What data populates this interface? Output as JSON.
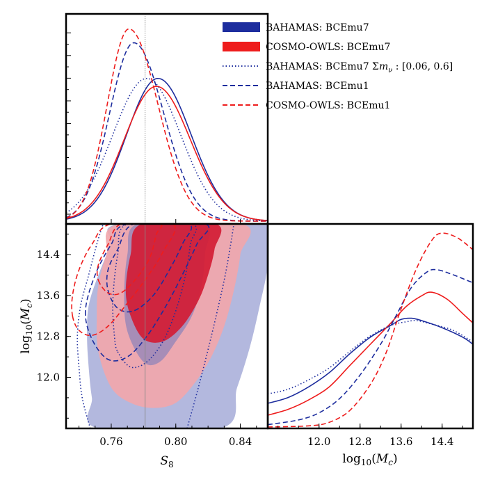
{
  "chart_data": {
    "type": "corner-plot",
    "colors": {
      "bahamas": "#1d2d9e",
      "cosmo_owls": "#ee1c1c",
      "bahamas_fill_outer": "#a6acd8",
      "bahamas_fill_inner": "#6f77bd",
      "cosmo_fill_outer": "#f2a6ab",
      "cosmo_fill_inner": "#d31c34"
    },
    "legend": [
      {
        "label": "BAHAMAS: BCEmu7",
        "color": "#1d2d9e",
        "style": "patch"
      },
      {
        "label": "COSMO-OWLS: BCEmu7",
        "color": "#ee1c1c",
        "style": "patch"
      },
      {
        "label": "BAHAMAS: BCEmu7 Σm_ν : [0.06, 0.6]",
        "color": "#1d2d9e",
        "style": "dotted"
      },
      {
        "label": "BAHAMAS: BCEmu1",
        "color": "#1d2d9e",
        "style": "dashed"
      },
      {
        "label": "COSMO-OWLS: BCEmu1",
        "color": "#ee1c1c",
        "style": "dashed"
      }
    ],
    "axes": {
      "s8": {
        "label": "S_8",
        "range": [
          0.732,
          0.857
        ],
        "ticks": [
          "0.76",
          "0.80",
          "0.84"
        ],
        "tick_values": [
          0.76,
          0.8,
          0.84
        ]
      },
      "logmc": {
        "label": "log10(M_c)",
        "range": [
          11.0,
          15.0
        ],
        "ticks": [
          "12.0",
          "12.8",
          "13.6",
          "14.4"
        ],
        "tick_values": [
          12.0,
          12.8,
          13.6,
          14.4
        ]
      }
    },
    "reference_line": {
      "s8": 0.781
    },
    "s8_marginals": [
      {
        "name": "BAHAMAS: BCEmu7",
        "color": "#1d2d9e",
        "style": "solid",
        "mean": 0.789,
        "sd_left": 0.0195,
        "sd_right": 0.0205,
        "peak": 0.72
      },
      {
        "name": "COSMO-OWLS: BCEmu7",
        "color": "#ee1c1c",
        "style": "solid",
        "mean": 0.788,
        "sd_left": 0.02,
        "sd_right": 0.021,
        "peak": 0.68
      },
      {
        "name": "BAHAMAS: BCEmu7 Σm_ν : [0.06, 0.6]",
        "color": "#1d2d9e",
        "style": "dotted",
        "mean": 0.782,
        "sd_left": 0.021,
        "sd_right": 0.021,
        "peak": 0.72
      },
      {
        "name": "BAHAMAS: BCEmu1",
        "color": "#1d2d9e",
        "style": "dashed",
        "mean": 0.774,
        "sd_left": 0.015,
        "sd_right": 0.0185,
        "peak": 0.9
      },
      {
        "name": "COSMO-OWLS: BCEmu1",
        "color": "#ee1c1c",
        "style": "dashed",
        "mean": 0.771,
        "sd_left": 0.0135,
        "sd_right": 0.018,
        "peak": 0.97
      }
    ],
    "logmc_marginals": [
      {
        "name": "BAHAMAS: BCEmu7",
        "color": "#1d2d9e",
        "style": "solid",
        "points": [
          [
            11.0,
            0.1
          ],
          [
            11.4,
            0.125
          ],
          [
            11.8,
            0.17
          ],
          [
            12.2,
            0.23
          ],
          [
            12.6,
            0.31
          ],
          [
            13.0,
            0.38
          ],
          [
            13.4,
            0.43
          ],
          [
            13.6,
            0.455
          ],
          [
            13.8,
            0.46
          ],
          [
            14.0,
            0.45
          ],
          [
            14.4,
            0.42
          ],
          [
            14.8,
            0.38
          ],
          [
            15.0,
            0.35
          ]
        ]
      },
      {
        "name": "COSMO-OWLS: BCEmu7",
        "color": "#ee1c1c",
        "style": "solid",
        "points": [
          [
            11.0,
            0.05
          ],
          [
            11.4,
            0.075
          ],
          [
            11.8,
            0.115
          ],
          [
            12.2,
            0.17
          ],
          [
            12.6,
            0.26
          ],
          [
            13.0,
            0.35
          ],
          [
            13.4,
            0.44
          ],
          [
            13.7,
            0.51
          ],
          [
            14.0,
            0.555
          ],
          [
            14.2,
            0.57
          ],
          [
            14.5,
            0.54
          ],
          [
            14.8,
            0.48
          ],
          [
            15.0,
            0.44
          ]
        ]
      },
      {
        "name": "BAHAMAS: BCEmu7 Σm_ν : [0.06, 0.6]",
        "color": "#1d2d9e",
        "style": "dotted",
        "points": [
          [
            11.0,
            0.14
          ],
          [
            11.4,
            0.16
          ],
          [
            11.8,
            0.2
          ],
          [
            12.2,
            0.25
          ],
          [
            12.6,
            0.32
          ],
          [
            13.0,
            0.385
          ],
          [
            13.4,
            0.43
          ],
          [
            13.7,
            0.445
          ],
          [
            13.9,
            0.45
          ],
          [
            14.2,
            0.435
          ],
          [
            14.6,
            0.41
          ],
          [
            15.0,
            0.36
          ]
        ]
      },
      {
        "name": "BAHAMAS: BCEmu1",
        "color": "#1d2d9e",
        "style": "dashed",
        "points": [
          [
            11.0,
            0.01
          ],
          [
            11.6,
            0.03
          ],
          [
            12.0,
            0.06
          ],
          [
            12.4,
            0.12
          ],
          [
            12.8,
            0.22
          ],
          [
            13.2,
            0.35
          ],
          [
            13.5,
            0.47
          ],
          [
            13.8,
            0.59
          ],
          [
            14.1,
            0.655
          ],
          [
            14.3,
            0.665
          ],
          [
            14.6,
            0.645
          ],
          [
            15.0,
            0.61
          ]
        ]
      },
      {
        "name": "COSMO-OWLS: BCEmu1",
        "color": "#ee1c1c",
        "style": "dashed",
        "points": [
          [
            11.0,
            0.0
          ],
          [
            11.8,
            0.005
          ],
          [
            12.2,
            0.02
          ],
          [
            12.6,
            0.07
          ],
          [
            13.0,
            0.18
          ],
          [
            13.3,
            0.31
          ],
          [
            13.6,
            0.5
          ],
          [
            13.9,
            0.67
          ],
          [
            14.2,
            0.79
          ],
          [
            14.4,
            0.82
          ],
          [
            14.7,
            0.8
          ],
          [
            15.0,
            0.75
          ]
        ]
      }
    ],
    "contours": [
      {
        "name": "BAHAMAS: BCEmu7 95%",
        "style": "fill",
        "fill": "#a6acd8",
        "opacity": 0.85,
        "points": [
          [
            0.752,
            11.0
          ],
          [
            0.748,
            11.6
          ],
          [
            0.746,
            12.2
          ],
          [
            0.745,
            12.8
          ],
          [
            0.746,
            13.4
          ],
          [
            0.752,
            14.0
          ],
          [
            0.76,
            14.6
          ],
          [
            0.766,
            15.0
          ],
          [
            0.857,
            15.0
          ],
          [
            0.857,
            14.2
          ],
          [
            0.852,
            13.4
          ],
          [
            0.846,
            12.6
          ],
          [
            0.838,
            11.8
          ],
          [
            0.828,
            11.0
          ]
        ]
      },
      {
        "name": "COSMO-OWLS: BCEmu7 95%",
        "style": "fill",
        "fill": "#f2a6ab",
        "opacity": 0.9,
        "points": [
          [
            0.751,
            13.2
          ],
          [
            0.752,
            12.5
          ],
          [
            0.76,
            11.8
          ],
          [
            0.772,
            11.5
          ],
          [
            0.786,
            11.4
          ],
          [
            0.8,
            11.5
          ],
          [
            0.812,
            11.9
          ],
          [
            0.822,
            12.4
          ],
          [
            0.83,
            13.0
          ],
          [
            0.836,
            13.7
          ],
          [
            0.84,
            14.4
          ],
          [
            0.841,
            15.0
          ],
          [
            0.765,
            15.0
          ],
          [
            0.757,
            14.4
          ],
          [
            0.752,
            13.8
          ]
        ]
      },
      {
        "name": "BAHAMAS: BCEmu7 68%",
        "style": "fill",
        "fill": "#6f77bd",
        "opacity": 0.55,
        "points": [
          [
            0.768,
            13.6
          ],
          [
            0.77,
            12.9
          ],
          [
            0.78,
            12.3
          ],
          [
            0.79,
            12.3
          ],
          [
            0.8,
            12.7
          ],
          [
            0.81,
            13.2
          ],
          [
            0.816,
            13.8
          ],
          [
            0.818,
            14.4
          ],
          [
            0.818,
            15.0
          ],
          [
            0.776,
            15.0
          ],
          [
            0.77,
            14.4
          ]
        ]
      },
      {
        "name": "COSMO-OWLS: BCEmu7 68%",
        "style": "fill",
        "fill": "#d31c34",
        "opacity": 0.92,
        "points": [
          [
            0.769,
            13.7
          ],
          [
            0.772,
            13.2
          ],
          [
            0.78,
            12.75
          ],
          [
            0.792,
            12.7
          ],
          [
            0.804,
            13.0
          ],
          [
            0.814,
            13.5
          ],
          [
            0.82,
            14.0
          ],
          [
            0.824,
            14.5
          ],
          [
            0.825,
            15.0
          ],
          [
            0.779,
            15.0
          ],
          [
            0.772,
            14.4
          ]
        ]
      },
      {
        "name": "BAHAMAS: BCEmu7 Σm_ν 95%",
        "style": "dotted",
        "stroke": "#1d2d9e",
        "points": [
          [
            0.747,
            11.0
          ],
          [
            0.742,
            11.6
          ],
          [
            0.74,
            12.2
          ],
          [
            0.739,
            12.8
          ],
          [
            0.741,
            13.4
          ],
          [
            0.746,
            14.0
          ],
          [
            0.751,
            14.6
          ],
          [
            0.755,
            15.0
          ]
        ]
      },
      {
        "name": "BAHAMAS: BCEmu7 Σm_ν 68%",
        "style": "dotted",
        "stroke": "#1d2d9e",
        "points": [
          [
            0.764,
            12.5
          ],
          [
            0.772,
            12.2
          ],
          [
            0.782,
            12.3
          ],
          [
            0.792,
            12.7
          ],
          [
            0.8,
            13.3
          ],
          [
            0.806,
            14.0
          ],
          [
            0.809,
            14.6
          ],
          [
            0.81,
            15.0
          ],
          [
            0.77,
            15.0
          ],
          [
            0.764,
            14.4
          ],
          [
            0.761,
            13.5
          ],
          [
            0.762,
            12.8
          ],
          [
            0.764,
            12.5
          ]
        ]
      },
      {
        "name": "BAHAMAS: BCEmu7 Σm_ν 95% right",
        "style": "dotted",
        "stroke": "#1d2d9e",
        "points": [
          [
            0.807,
            11.0
          ],
          [
            0.814,
            11.8
          ],
          [
            0.822,
            12.8
          ],
          [
            0.83,
            13.9
          ],
          [
            0.834,
            14.6
          ],
          [
            0.836,
            15.0
          ]
        ]
      },
      {
        "name": "BAHAMAS: BCEmu1 95%",
        "style": "dashed",
        "stroke": "#1d2d9e",
        "points": [
          [
            0.744,
            13.3
          ],
          [
            0.748,
            12.75
          ],
          [
            0.758,
            12.35
          ],
          [
            0.77,
            12.4
          ],
          [
            0.782,
            12.8
          ],
          [
            0.794,
            13.4
          ],
          [
            0.804,
            14.0
          ],
          [
            0.813,
            14.6
          ],
          [
            0.818,
            15.0
          ],
          [
            0.77,
            15.0
          ],
          [
            0.76,
            14.6
          ],
          [
            0.75,
            14.0
          ],
          [
            0.744,
            13.3
          ]
        ]
      },
      {
        "name": "BAHAMAS: BCEmu1 68%",
        "style": "dashed",
        "stroke": "#1d2d9e",
        "points": [
          [
            0.758,
            13.7
          ],
          [
            0.764,
            13.35
          ],
          [
            0.774,
            13.3
          ],
          [
            0.786,
            13.6
          ],
          [
            0.796,
            14.1
          ],
          [
            0.804,
            14.6
          ],
          [
            0.808,
            15.0
          ],
          [
            0.774,
            15.0
          ],
          [
            0.764,
            14.5
          ],
          [
            0.758,
            14.1
          ],
          [
            0.758,
            13.7
          ]
        ]
      },
      {
        "name": "COSMO-OWLS: BCEmu1 95%",
        "style": "dashed",
        "stroke": "#ee1c1c",
        "points": [
          [
            0.736,
            13.2
          ],
          [
            0.74,
            12.92
          ],
          [
            0.748,
            12.82
          ],
          [
            0.758,
            13.0
          ],
          [
            0.77,
            13.45
          ],
          [
            0.782,
            13.95
          ],
          [
            0.792,
            14.45
          ],
          [
            0.798,
            15.0
          ],
          [
            0.76,
            15.0
          ],
          [
            0.748,
            14.6
          ],
          [
            0.74,
            14.1
          ],
          [
            0.736,
            13.6
          ],
          [
            0.736,
            13.2
          ]
        ]
      },
      {
        "name": "COSMO-OWLS: BCEmu1 68%",
        "style": "dashed",
        "stroke": "#ee1c1c",
        "points": [
          [
            0.752,
            13.9
          ],
          [
            0.758,
            13.65
          ],
          [
            0.766,
            13.65
          ],
          [
            0.776,
            13.95
          ],
          [
            0.784,
            14.35
          ],
          [
            0.788,
            14.8
          ],
          [
            0.79,
            15.0
          ],
          [
            0.766,
            15.0
          ],
          [
            0.758,
            14.6
          ],
          [
            0.752,
            14.2
          ],
          [
            0.752,
            13.9
          ]
        ]
      }
    ]
  }
}
